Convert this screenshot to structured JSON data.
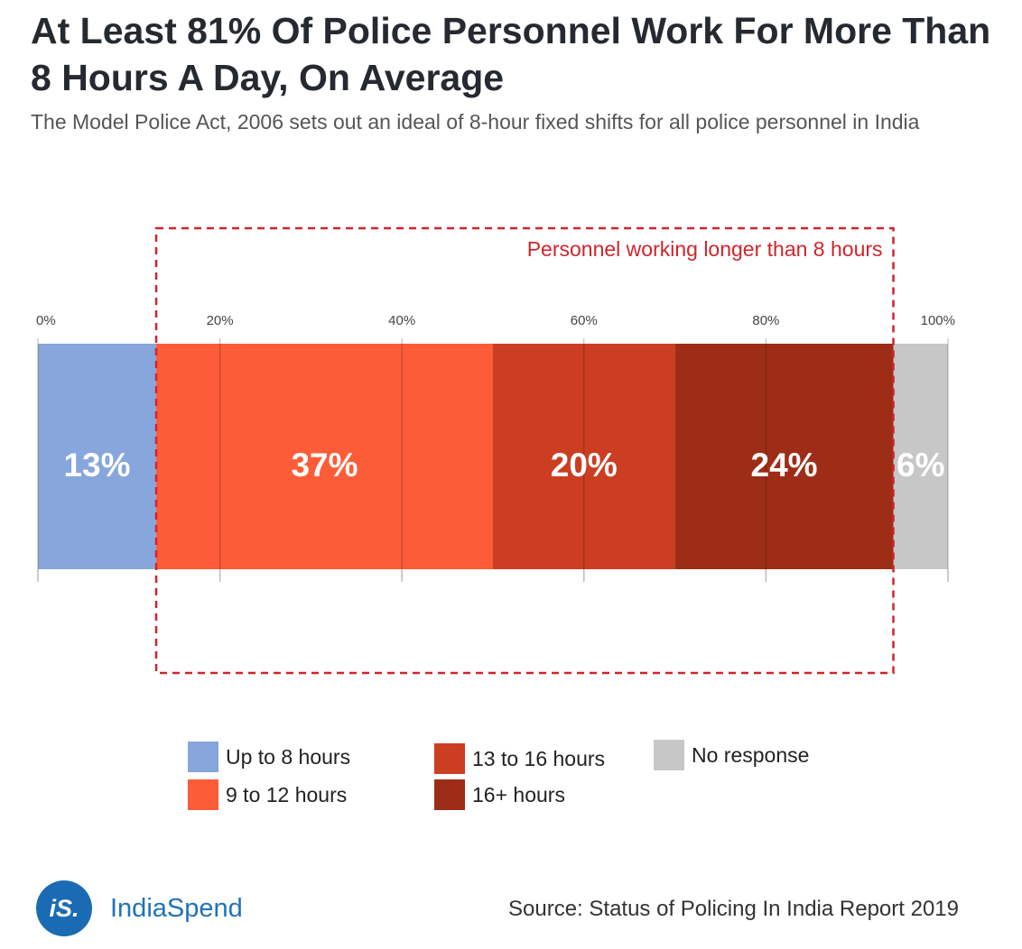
{
  "header": {
    "title": "At Least 81% Of Police Personnel Work For More Than 8 Hours A Day, On Average",
    "subtitle": "The Model Police Act, 2006 sets out an ideal of 8-hour fixed shifts for all police personnel in India"
  },
  "chart_data": {
    "type": "bar",
    "orientation": "horizontal-stacked-100",
    "xlim": [
      0,
      100
    ],
    "ticks": [
      "0%",
      "20%",
      "40%",
      "60%",
      "80%",
      "100%"
    ],
    "tick_values": [
      0,
      20,
      40,
      60,
      80,
      100
    ],
    "grid": true,
    "series": [
      {
        "name": "Up to 8 hours",
        "value": 13,
        "label": "13%",
        "color": "#86a6dc"
      },
      {
        "name": "9 to 12 hours",
        "value": 37,
        "label": "37%",
        "color": "#fd5c38"
      },
      {
        "name": "13 to 16 hours",
        "value": 20,
        "label": "20%",
        "color": "#cc3e22"
      },
      {
        "name": "16+ hours",
        "value": 24,
        "label": "24%",
        "color": "#9e2d17"
      },
      {
        "name": "No response",
        "value": 6,
        "label": "6%",
        "color": "#c7c7c7"
      }
    ],
    "annotation": {
      "text": "Personnel working longer than 8 hours",
      "from": 13,
      "to": 94,
      "color": "#d0242b"
    }
  },
  "legend": {
    "items": [
      "Up to 8 hours",
      "9 to 12 hours",
      "13 to 16 hours",
      "16+ hours",
      "No response"
    ]
  },
  "footer": {
    "brand_mark": "iS.",
    "brand_name": "IndiaSpend",
    "source": "Source: Status of Policing In India Report 2019"
  }
}
